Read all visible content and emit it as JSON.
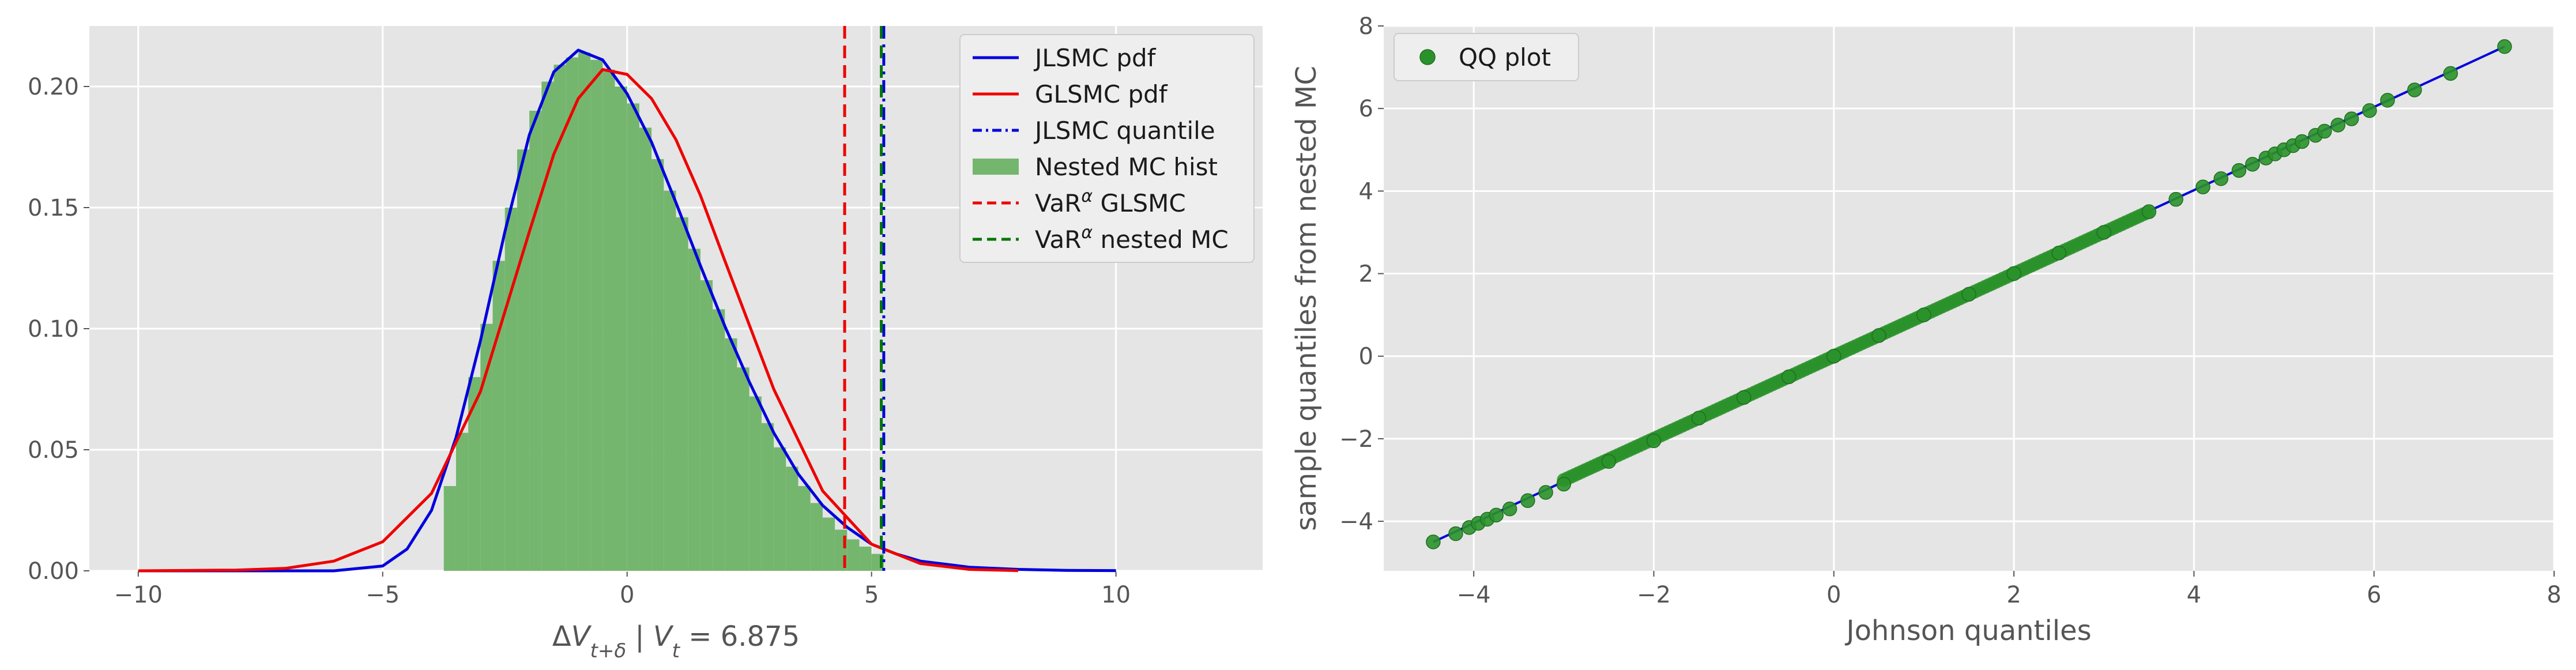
{
  "colors": {
    "panel_bg": "#e5e5e5",
    "grid": "#ffffff",
    "jlsmc": "#0000dd",
    "glsmc": "#ee0000",
    "hist": "#75b66f",
    "var_glsmc": "#ee0000",
    "var_nested": "#007700",
    "qq_point": "#2a922a",
    "qq_line": "#0000dd"
  },
  "chart_data": [
    {
      "type": "line",
      "xlabel_parts": {
        "delta": "Δ",
        "V1": "V",
        "sub1": "t+δ",
        "sep": " | ",
        "V2": "V",
        "sub2": "t",
        "eq": " = 6.875"
      },
      "ylabel": "",
      "xlim": [
        -11,
        13
      ],
      "ylim": [
        0,
        0.225
      ],
      "x_ticks": [
        -10,
        -5,
        0,
        5,
        10
      ],
      "y_ticks": [
        0.0,
        0.05,
        0.1,
        0.15,
        0.2
      ],
      "x_tick_labels": [
        "−10",
        "−5",
        "0",
        "5",
        "10"
      ],
      "y_tick_labels": [
        "0.00",
        "0.05",
        "0.10",
        "0.15",
        "0.20"
      ],
      "grid": true,
      "legend_position": "top-right",
      "legend": [
        {
          "label": "JLSMC pdf",
          "style": "solid",
          "color_key": "jlsmc"
        },
        {
          "label": "GLSMC pdf",
          "style": "solid",
          "color_key": "glsmc"
        },
        {
          "label": "JLSMC quantile",
          "style": "dashdot",
          "color_key": "jlsmc"
        },
        {
          "label": "Nested MC hist",
          "style": "patch",
          "color_key": "hist"
        },
        {
          "label_main": "VaR",
          "label_sup": "α",
          "label_rest": " GLSMC",
          "style": "dashed",
          "color_key": "var_glsmc"
        },
        {
          "label_main": "VaR",
          "label_sup": "α",
          "label_rest": " nested MC",
          "style": "dashed",
          "color_key": "var_nested"
        }
      ],
      "series": [
        {
          "name": "JLSMC pdf",
          "x": [
            -10,
            -6,
            -5,
            -4.5,
            -4,
            -3.5,
            -3,
            -2.5,
            -2,
            -1.5,
            -1,
            -0.5,
            0,
            0.5,
            1,
            1.5,
            2,
            2.5,
            3,
            3.5,
            4,
            4.5,
            5,
            5.5,
            6,
            7,
            8,
            9,
            10
          ],
          "y": [
            0.0,
            0.0,
            0.002,
            0.009,
            0.025,
            0.055,
            0.095,
            0.14,
            0.18,
            0.206,
            0.215,
            0.211,
            0.197,
            0.177,
            0.152,
            0.126,
            0.101,
            0.078,
            0.057,
            0.04,
            0.027,
            0.018,
            0.011,
            0.007,
            0.004,
            0.0015,
            0.0006,
            0.0002,
            0.0001
          ]
        },
        {
          "name": "GLSMC pdf",
          "x": [
            -10,
            -8,
            -7,
            -6,
            -5,
            -4,
            -3,
            -2,
            -1.5,
            -1,
            -0.5,
            0,
            0.5,
            1,
            1.5,
            2,
            3,
            4,
            5,
            6,
            7,
            8
          ],
          "y": [
            0.0,
            0.0003,
            0.001,
            0.004,
            0.012,
            0.032,
            0.074,
            0.14,
            0.172,
            0.195,
            0.207,
            0.205,
            0.195,
            0.178,
            0.155,
            0.128,
            0.075,
            0.033,
            0.011,
            0.003,
            0.0006,
            0.0001
          ]
        }
      ],
      "histogram": {
        "name": "Nested MC hist",
        "bin_edges": [
          -3.75,
          -3.5,
          -3.25,
          -3.0,
          -2.75,
          -2.5,
          -2.25,
          -2.0,
          -1.75,
          -1.5,
          -1.25,
          -1.0,
          -0.75,
          -0.5,
          -0.25,
          0.0,
          0.25,
          0.5,
          0.75,
          1.0,
          1.25,
          1.5,
          1.75,
          2.0,
          2.25,
          2.5,
          2.75,
          3.0,
          3.25,
          3.5,
          3.75,
          4.0,
          4.25,
          4.5,
          4.75,
          5.0,
          5.25
        ],
        "counts": [
          0.035,
          0.057,
          0.08,
          0.102,
          0.128,
          0.15,
          0.174,
          0.19,
          0.202,
          0.209,
          0.212,
          0.214,
          0.211,
          0.207,
          0.2,
          0.193,
          0.183,
          0.17,
          0.157,
          0.146,
          0.133,
          0.12,
          0.108,
          0.096,
          0.084,
          0.072,
          0.061,
          0.051,
          0.043,
          0.035,
          0.028,
          0.022,
          0.017,
          0.013,
          0.01,
          0.007
        ]
      },
      "vlines": [
        {
          "name": "JLSMC quantile",
          "x": 5.25,
          "style": "dashdot",
          "color_key": "jlsmc"
        },
        {
          "name": "VaR GLSMC",
          "x": 4.45,
          "style": "dashed",
          "color_key": "var_glsmc"
        },
        {
          "name": "VaR nested MC",
          "x": 5.2,
          "style": "dashed",
          "color_key": "var_nested"
        }
      ]
    },
    {
      "type": "scatter",
      "xlabel": "Johnson quantiles",
      "ylabel": "sample quantiles from nested MC",
      "xlim": [
        -5.0,
        8.0
      ],
      "ylim": [
        -5.2,
        8.0
      ],
      "x_ticks": [
        -4,
        -2,
        0,
        2,
        4,
        6,
        8
      ],
      "y_ticks": [
        -4,
        -2,
        0,
        2,
        4,
        6,
        8
      ],
      "x_tick_labels": [
        "−4",
        "−2",
        "0",
        "2",
        "4",
        "6",
        "8"
      ],
      "y_tick_labels": [
        "−4",
        "−2",
        "0",
        "2",
        "4",
        "6",
        "8"
      ],
      "grid": true,
      "legend_position": "top-left",
      "legend": [
        {
          "label": "QQ plot",
          "style": "marker",
          "color_key": "qq_point"
        }
      ],
      "series": [
        {
          "name": "QQ plot",
          "points": [
            [
              -4.45,
              -4.5
            ],
            [
              -4.2,
              -4.3
            ],
            [
              -4.05,
              -4.15
            ],
            [
              -3.95,
              -4.05
            ],
            [
              -3.85,
              -3.95
            ],
            [
              -3.75,
              -3.85
            ],
            [
              -3.6,
              -3.7
            ],
            [
              -3.4,
              -3.5
            ],
            [
              -3.2,
              -3.3
            ],
            [
              -3.0,
              -3.1
            ],
            [
              -2.5,
              -2.55
            ],
            [
              -2.0,
              -2.05
            ],
            [
              -1.5,
              -1.5
            ],
            [
              -1.0,
              -1.0
            ],
            [
              -0.5,
              -0.5
            ],
            [
              0.0,
              0.0
            ],
            [
              0.5,
              0.5
            ],
            [
              1.0,
              1.0
            ],
            [
              1.5,
              1.5
            ],
            [
              2.0,
              2.0
            ],
            [
              2.5,
              2.5
            ],
            [
              3.0,
              3.0
            ],
            [
              3.5,
              3.5
            ],
            [
              3.8,
              3.8
            ],
            [
              4.1,
              4.1
            ],
            [
              4.3,
              4.3
            ],
            [
              4.5,
              4.5
            ],
            [
              4.65,
              4.65
            ],
            [
              4.8,
              4.8
            ],
            [
              4.9,
              4.9
            ],
            [
              5.0,
              5.0
            ],
            [
              5.1,
              5.1
            ],
            [
              5.2,
              5.2
            ],
            [
              5.35,
              5.35
            ],
            [
              5.45,
              5.45
            ],
            [
              5.6,
              5.6
            ],
            [
              5.75,
              5.75
            ],
            [
              5.95,
              5.95
            ],
            [
              6.15,
              6.2
            ],
            [
              6.45,
              6.45
            ],
            [
              6.85,
              6.85
            ],
            [
              7.45,
              7.5
            ]
          ]
        }
      ],
      "reference_line": {
        "x": [
          -4.45,
          7.45
        ],
        "y": [
          -4.5,
          7.5
        ]
      }
    }
  ]
}
